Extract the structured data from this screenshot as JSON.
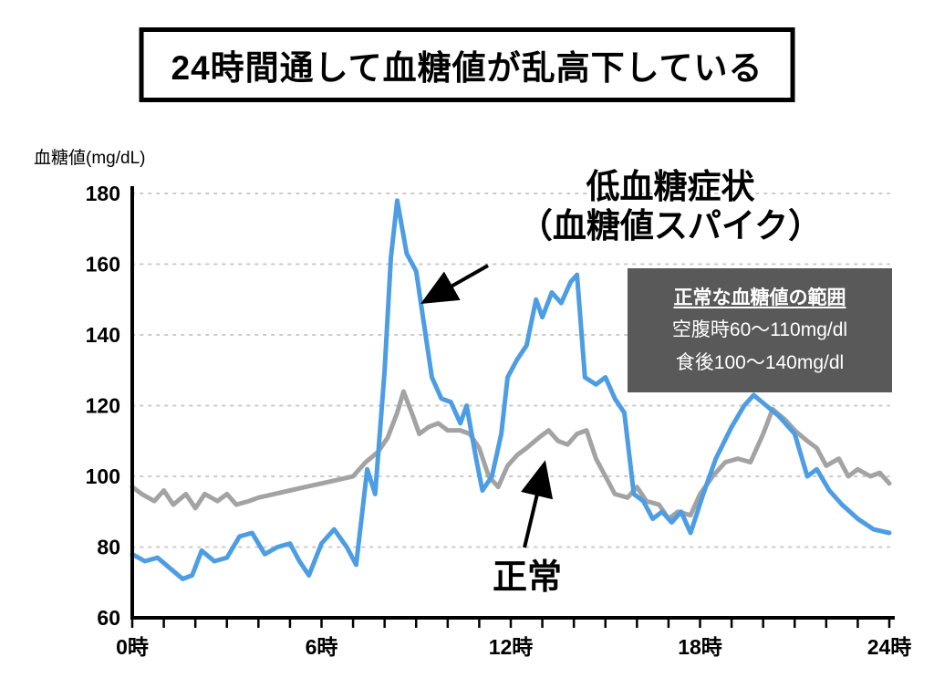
{
  "title": {
    "text": "24時間通して血糖値が乱高下している"
  },
  "chart_data": {
    "type": "line",
    "title": "24時間通して血糖値が乱高下している",
    "ylabel": "血糖値(mg/dL)",
    "xlabel": "",
    "xlim": [
      0,
      24
    ],
    "ylim": [
      60,
      180
    ],
    "yticks": [
      60,
      80,
      100,
      120,
      140,
      160,
      180
    ],
    "xticks": [
      {
        "value": 0,
        "label": "0時"
      },
      {
        "value": 6,
        "label": "6時"
      },
      {
        "value": 12,
        "label": "12時"
      },
      {
        "value": 18,
        "label": "18時"
      },
      {
        "value": 24,
        "label": "24時"
      }
    ],
    "minor_xtick_every": 1,
    "grid": "horizontal-dotted",
    "legend_position": "none",
    "series": [
      {
        "name": "正常",
        "color": "#a3a3a3",
        "points": [
          [
            0,
            97
          ],
          [
            0.3,
            95
          ],
          [
            0.7,
            93
          ],
          [
            1.0,
            96
          ],
          [
            1.3,
            92
          ],
          [
            1.7,
            95
          ],
          [
            2.0,
            91
          ],
          [
            2.3,
            95
          ],
          [
            2.7,
            93
          ],
          [
            3.0,
            95
          ],
          [
            3.3,
            92
          ],
          [
            3.7,
            93
          ],
          [
            4.0,
            94
          ],
          [
            4.5,
            95
          ],
          [
            5.0,
            96
          ],
          [
            5.5,
            97
          ],
          [
            6.0,
            98
          ],
          [
            6.5,
            99
          ],
          [
            7.0,
            100
          ],
          [
            7.4,
            104
          ],
          [
            7.8,
            107
          ],
          [
            8.1,
            111
          ],
          [
            8.4,
            118
          ],
          [
            8.6,
            124
          ],
          [
            8.9,
            117
          ],
          [
            9.1,
            112
          ],
          [
            9.4,
            114
          ],
          [
            9.7,
            115
          ],
          [
            10.0,
            113
          ],
          [
            10.4,
            113
          ],
          [
            10.7,
            112
          ],
          [
            11.0,
            108
          ],
          [
            11.3,
            100
          ],
          [
            11.6,
            97
          ],
          [
            11.9,
            103
          ],
          [
            12.2,
            106
          ],
          [
            12.5,
            108
          ],
          [
            12.9,
            111
          ],
          [
            13.2,
            113
          ],
          [
            13.5,
            110
          ],
          [
            13.8,
            109
          ],
          [
            14.1,
            112
          ],
          [
            14.4,
            113
          ],
          [
            14.7,
            105
          ],
          [
            15.0,
            100
          ],
          [
            15.3,
            95
          ],
          [
            15.7,
            94
          ],
          [
            16.0,
            97
          ],
          [
            16.3,
            93
          ],
          [
            16.7,
            92
          ],
          [
            17.0,
            88
          ],
          [
            17.3,
            90
          ],
          [
            17.7,
            89
          ],
          [
            18.0,
            95
          ],
          [
            18.4,
            100
          ],
          [
            18.8,
            104
          ],
          [
            19.2,
            105
          ],
          [
            19.6,
            104
          ],
          [
            20.0,
            112
          ],
          [
            20.3,
            119
          ],
          [
            20.7,
            116
          ],
          [
            21.0,
            113
          ],
          [
            21.4,
            110
          ],
          [
            21.7,
            108
          ],
          [
            22.0,
            103
          ],
          [
            22.4,
            105
          ],
          [
            22.7,
            100
          ],
          [
            23.0,
            102
          ],
          [
            23.4,
            100
          ],
          [
            23.7,
            101
          ],
          [
            24,
            98
          ]
        ]
      },
      {
        "name": "低血糖症状（血糖値スパイク）",
        "color": "#4d9de4",
        "points": [
          [
            0,
            78
          ],
          [
            0.4,
            76
          ],
          [
            0.8,
            77
          ],
          [
            1.2,
            74
          ],
          [
            1.6,
            71
          ],
          [
            1.9,
            72
          ],
          [
            2.2,
            79
          ],
          [
            2.6,
            76
          ],
          [
            3.0,
            77
          ],
          [
            3.4,
            83
          ],
          [
            3.8,
            84
          ],
          [
            4.2,
            78
          ],
          [
            4.6,
            80
          ],
          [
            5.0,
            81
          ],
          [
            5.3,
            76
          ],
          [
            5.6,
            72
          ],
          [
            6.0,
            81
          ],
          [
            6.4,
            85
          ],
          [
            6.8,
            80
          ],
          [
            7.1,
            75
          ],
          [
            7.45,
            102
          ],
          [
            7.7,
            95
          ],
          [
            8.0,
            130
          ],
          [
            8.2,
            162
          ],
          [
            8.4,
            178
          ],
          [
            8.7,
            163
          ],
          [
            9.0,
            158
          ],
          [
            9.3,
            140
          ],
          [
            9.5,
            128
          ],
          [
            9.8,
            122
          ],
          [
            10.1,
            121
          ],
          [
            10.4,
            115
          ],
          [
            10.6,
            120
          ],
          [
            10.9,
            105
          ],
          [
            11.1,
            96
          ],
          [
            11.4,
            100
          ],
          [
            11.7,
            112
          ],
          [
            11.9,
            128
          ],
          [
            12.2,
            133
          ],
          [
            12.5,
            137
          ],
          [
            12.8,
            150
          ],
          [
            13.0,
            145
          ],
          [
            13.3,
            152
          ],
          [
            13.6,
            149
          ],
          [
            13.9,
            155
          ],
          [
            14.1,
            157
          ],
          [
            14.35,
            128
          ],
          [
            14.7,
            126
          ],
          [
            15.0,
            128
          ],
          [
            15.3,
            122
          ],
          [
            15.6,
            118
          ],
          [
            15.9,
            95
          ],
          [
            16.2,
            93
          ],
          [
            16.5,
            88
          ],
          [
            16.8,
            90
          ],
          [
            17.1,
            87
          ],
          [
            17.4,
            90
          ],
          [
            17.7,
            84
          ],
          [
            18.1,
            95
          ],
          [
            18.5,
            105
          ],
          [
            19.0,
            114
          ],
          [
            19.4,
            120
          ],
          [
            19.7,
            123
          ],
          [
            20.1,
            120
          ],
          [
            20.5,
            117
          ],
          [
            21.0,
            112
          ],
          [
            21.4,
            100
          ],
          [
            21.7,
            102
          ],
          [
            22.1,
            96
          ],
          [
            22.5,
            92
          ],
          [
            23.0,
            88
          ],
          [
            23.5,
            85
          ],
          [
            24,
            84
          ]
        ]
      }
    ]
  },
  "annotations": {
    "spike": {
      "line1": "低血糖症状",
      "line2": "（血糖値スパイク）"
    },
    "normal": {
      "text": "正常"
    },
    "range_box": {
      "title": "正常な血糖値の範囲",
      "line1": "空腹時60〜110mg/dl",
      "line2": "食後100〜140mg/dl",
      "background": "#595959"
    }
  }
}
